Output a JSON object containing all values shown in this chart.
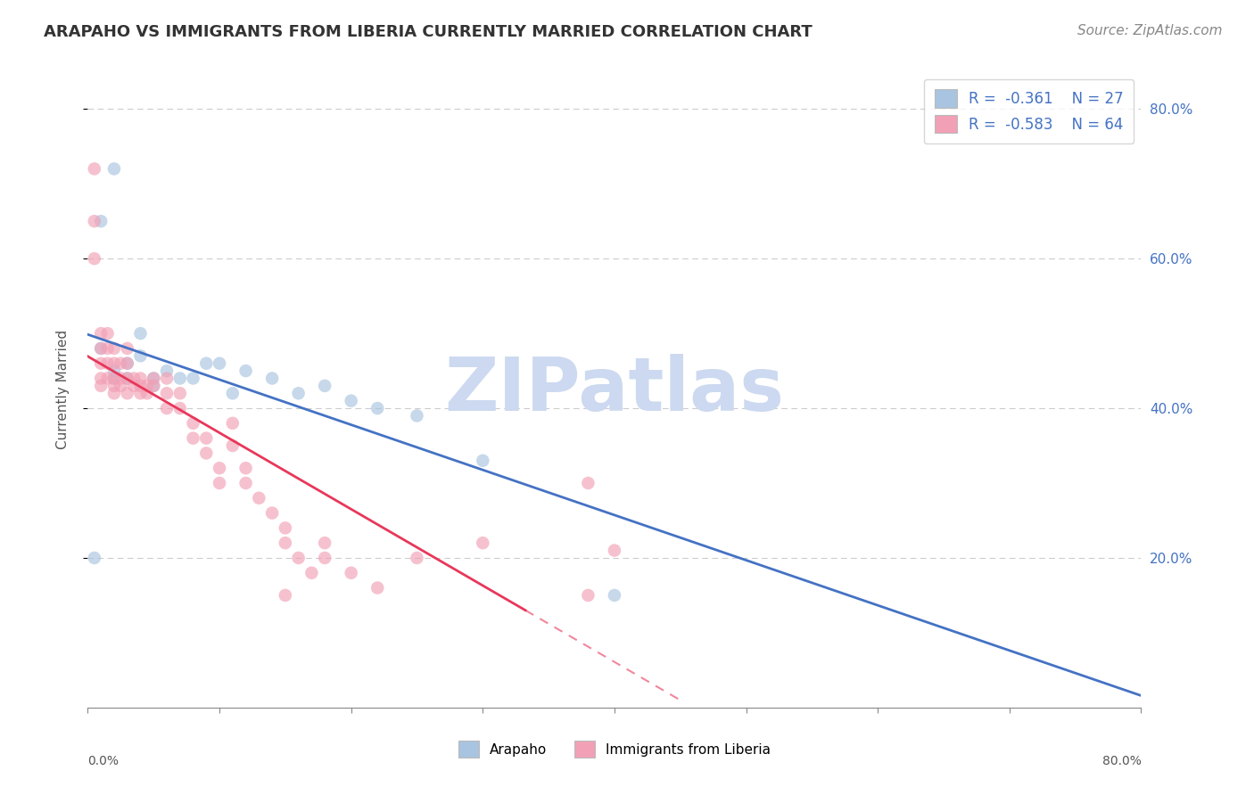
{
  "title": "ARAPAHO VS IMMIGRANTS FROM LIBERIA CURRENTLY MARRIED CORRELATION CHART",
  "source": "Source: ZipAtlas.com",
  "ylabel": "Currently Married",
  "legend_label1": "Arapaho",
  "legend_label2": "Immigrants from Liberia",
  "arapaho_color": "#a8c4e0",
  "liberia_color": "#f2a0b5",
  "trendline_arapaho_color": "#4472c4",
  "trendline_liberia_color": "#e8375a",
  "watermark": "ZIPatlas",
  "arapaho_scatter_x": [
    0.005,
    0.01,
    0.01,
    0.02,
    0.02,
    0.02,
    0.03,
    0.03,
    0.04,
    0.04,
    0.05,
    0.05,
    0.06,
    0.07,
    0.08,
    0.09,
    0.1,
    0.11,
    0.12,
    0.14,
    0.16,
    0.18,
    0.2,
    0.22,
    0.25,
    0.3,
    0.4
  ],
  "arapaho_scatter_y": [
    0.2,
    0.48,
    0.65,
    0.45,
    0.44,
    0.72,
    0.46,
    0.44,
    0.47,
    0.5,
    0.44,
    0.43,
    0.45,
    0.44,
    0.44,
    0.46,
    0.46,
    0.42,
    0.45,
    0.44,
    0.42,
    0.43,
    0.41,
    0.4,
    0.39,
    0.33,
    0.15
  ],
  "liberia_scatter_x": [
    0.005,
    0.005,
    0.005,
    0.01,
    0.01,
    0.01,
    0.01,
    0.01,
    0.015,
    0.015,
    0.015,
    0.015,
    0.02,
    0.02,
    0.02,
    0.02,
    0.02,
    0.025,
    0.025,
    0.025,
    0.03,
    0.03,
    0.03,
    0.03,
    0.035,
    0.035,
    0.04,
    0.04,
    0.04,
    0.045,
    0.045,
    0.05,
    0.05,
    0.06,
    0.06,
    0.06,
    0.07,
    0.07,
    0.08,
    0.08,
    0.09,
    0.09,
    0.1,
    0.1,
    0.11,
    0.11,
    0.12,
    0.12,
    0.13,
    0.14,
    0.15,
    0.15,
    0.16,
    0.17,
    0.18,
    0.18,
    0.2,
    0.22,
    0.25,
    0.3,
    0.38,
    0.4,
    0.38,
    0.15
  ],
  "liberia_scatter_y": [
    0.72,
    0.65,
    0.6,
    0.48,
    0.46,
    0.5,
    0.44,
    0.43,
    0.46,
    0.48,
    0.5,
    0.44,
    0.44,
    0.46,
    0.48,
    0.42,
    0.43,
    0.46,
    0.44,
    0.43,
    0.44,
    0.46,
    0.48,
    0.42,
    0.44,
    0.43,
    0.44,
    0.42,
    0.43,
    0.43,
    0.42,
    0.44,
    0.43,
    0.42,
    0.4,
    0.44,
    0.42,
    0.4,
    0.38,
    0.36,
    0.36,
    0.34,
    0.32,
    0.3,
    0.38,
    0.35,
    0.32,
    0.3,
    0.28,
    0.26,
    0.24,
    0.22,
    0.2,
    0.18,
    0.22,
    0.2,
    0.18,
    0.16,
    0.2,
    0.22,
    0.15,
    0.21,
    0.3,
    0.15
  ],
  "xlim": [
    0.0,
    0.8
  ],
  "ylim": [
    0.0,
    0.85
  ],
  "grid_yticks": [
    0.2,
    0.4,
    0.6,
    0.8
  ],
  "right_axis_labels": [
    "20.0%",
    "40.0%",
    "60.0%",
    "80.0%"
  ],
  "grid_color": "#cccccc",
  "background_color": "#ffffff",
  "title_color": "#333333",
  "axis_label_color": "#555555",
  "right_tick_color": "#4472c4",
  "watermark_color": "#ccd9f0",
  "watermark_fontsize": 60,
  "title_fontsize": 13,
  "source_fontsize": 11,
  "legend_fontsize": 12,
  "axis_label_fontsize": 11,
  "scatter_size": 110,
  "scatter_alpha": 0.65
}
